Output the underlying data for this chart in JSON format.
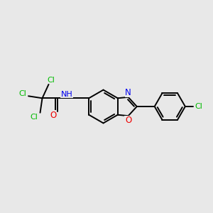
{
  "background_color": "#e8e8e8",
  "bond_color": "#000000",
  "bond_width": 1.4,
  "cl_color": "#00bb00",
  "n_color": "#0000ee",
  "o_color": "#ee0000",
  "figsize": [
    3.0,
    3.0
  ],
  "dpi": 100,
  "xlim": [
    0,
    10
  ],
  "ylim": [
    2,
    8
  ]
}
